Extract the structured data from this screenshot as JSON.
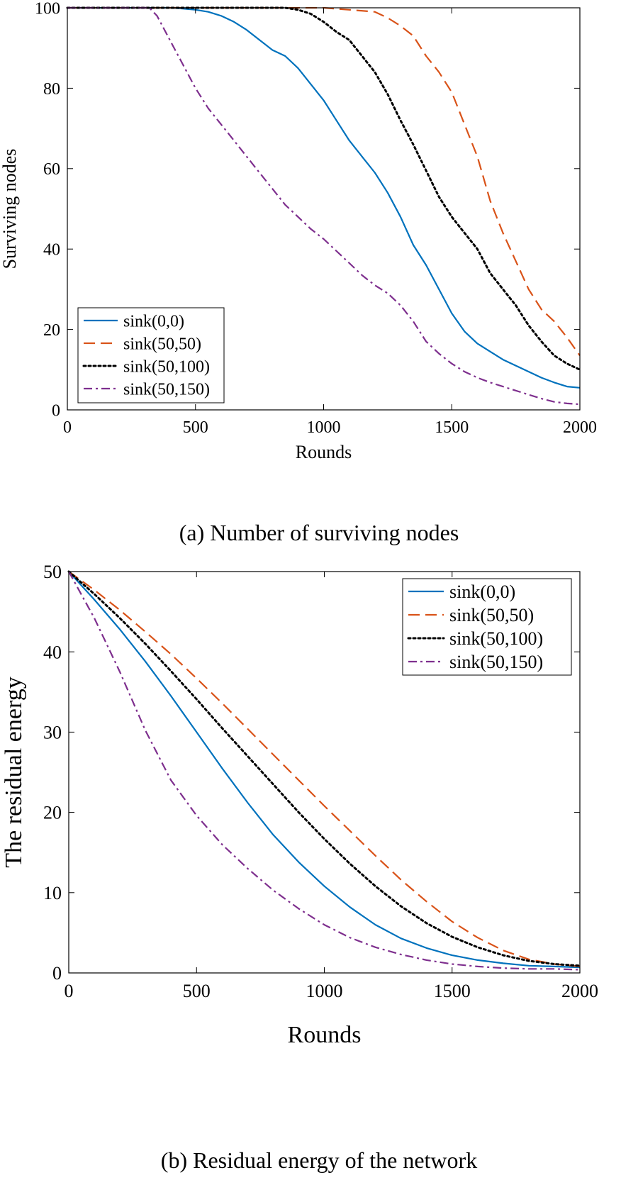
{
  "chart_data": [
    {
      "type": "line",
      "caption": "(a) Number of surviving nodes",
      "xlabel": "Rounds",
      "ylabel": "Surviving nodes",
      "xlim": [
        0,
        2000
      ],
      "ylim": [
        0,
        100
      ],
      "xticks": [
        0,
        500,
        1000,
        1500,
        2000
      ],
      "yticks": [
        0,
        20,
        40,
        60,
        80,
        100
      ],
      "xtick_labels": [
        "0",
        "500",
        "1000",
        "1500",
        "2000"
      ],
      "ytick_labels": [
        "0",
        "20",
        "40",
        "60",
        "80",
        "100"
      ],
      "grid": false,
      "legend_position": "bottom-left",
      "series": [
        {
          "name": "sink(0,0)",
          "color": "#0072BD",
          "style": "solid",
          "x": [
            0,
            400,
            450,
            500,
            550,
            600,
            650,
            700,
            750,
            800,
            850,
            900,
            950,
            1000,
            1050,
            1100,
            1150,
            1200,
            1250,
            1300,
            1350,
            1400,
            1450,
            1500,
            1550,
            1600,
            1650,
            1700,
            1750,
            1800,
            1850,
            1900,
            1950,
            2000
          ],
          "y": [
            100,
            100,
            99.8,
            99.5,
            99,
            98,
            96.5,
            94.5,
            92,
            89.5,
            88,
            85,
            81,
            77,
            72,
            67,
            63,
            59,
            54,
            48,
            41,
            36,
            30,
            24,
            19.5,
            16.5,
            14.5,
            12.5,
            11,
            9.5,
            8,
            6.8,
            5.8,
            5.5
          ]
        },
        {
          "name": "sink(50,50)",
          "color": "#D95319",
          "style": "dashed",
          "x": [
            0,
            900,
            1000,
            1100,
            1200,
            1250,
            1300,
            1350,
            1400,
            1450,
            1500,
            1550,
            1600,
            1650,
            1700,
            1750,
            1800,
            1850,
            1900,
            1950,
            2000
          ],
          "y": [
            100,
            100,
            100,
            99.5,
            99,
            97.5,
            95.5,
            93,
            88,
            84,
            79,
            71,
            63,
            52,
            44,
            37,
            30,
            25,
            22,
            18,
            13.5
          ]
        },
        {
          "name": "sink(50,100)",
          "color": "#000000",
          "style": "dotted",
          "x": [
            0,
            850,
            900,
            950,
            1000,
            1050,
            1100,
            1150,
            1200,
            1250,
            1300,
            1350,
            1400,
            1450,
            1500,
            1550,
            1600,
            1650,
            1700,
            1750,
            1800,
            1850,
            1900,
            1950,
            2000
          ],
          "y": [
            100,
            100,
            99.5,
            98.5,
            96.5,
            94,
            92,
            88,
            84,
            78.5,
            72,
            66,
            59.5,
            53,
            48,
            44,
            40,
            34,
            30,
            26,
            21,
            17,
            13.5,
            11.5,
            10
          ]
        },
        {
          "name": "sink(50,150)",
          "color": "#7E2F8E",
          "style": "dashdot",
          "x": [
            0,
            320,
            350,
            400,
            450,
            500,
            550,
            600,
            650,
            700,
            750,
            800,
            850,
            900,
            950,
            1000,
            1050,
            1100,
            1150,
            1200,
            1250,
            1300,
            1350,
            1400,
            1450,
            1500,
            1550,
            1600,
            1650,
            1700,
            1750,
            1800,
            1850,
            1900,
            1950,
            2000
          ],
          "y": [
            100,
            100,
            98,
            92,
            86,
            80,
            75,
            71,
            67,
            63,
            59,
            55,
            51,
            48,
            45,
            42.5,
            39.5,
            36.5,
            33.5,
            31,
            29,
            26,
            22,
            17,
            14,
            11.5,
            9.5,
            8,
            6.8,
            5.8,
            4.8,
            3.8,
            2.8,
            2,
            1.6,
            1.4
          ]
        }
      ]
    },
    {
      "type": "line",
      "caption": "(b) Residual energy of the network",
      "xlabel": "Rounds",
      "ylabel": "The residual energy",
      "xlim": [
        0,
        2000
      ],
      "ylim": [
        0,
        50
      ],
      "xticks": [
        0,
        500,
        1000,
        1500,
        2000
      ],
      "yticks": [
        0,
        10,
        20,
        30,
        40,
        50
      ],
      "xtick_labels": [
        "0",
        "500",
        "1000",
        "1500",
        "2000"
      ],
      "ytick_labels": [
        "0",
        "10",
        "20",
        "30",
        "40",
        "50"
      ],
      "grid": false,
      "legend_position": "top-right",
      "series": [
        {
          "name": "sink(0,0)",
          "color": "#0072BD",
          "style": "solid",
          "x": [
            0,
            100,
            200,
            300,
            400,
            500,
            600,
            700,
            800,
            900,
            1000,
            1100,
            1200,
            1300,
            1400,
            1500,
            1600,
            1700,
            1800,
            1900,
            2000
          ],
          "y": [
            50,
            46.5,
            42.8,
            38.8,
            34.5,
            30,
            25.5,
            21.2,
            17.2,
            13.8,
            10.8,
            8.2,
            6.0,
            4.3,
            3.1,
            2.2,
            1.6,
            1.2,
            0.9,
            0.8,
            0.7
          ]
        },
        {
          "name": "sink(50,50)",
          "color": "#D95319",
          "style": "dashed",
          "x": [
            0,
            100,
            200,
            300,
            400,
            500,
            600,
            700,
            800,
            900,
            1000,
            1100,
            1200,
            1300,
            1400,
            1500,
            1600,
            1700,
            1800,
            1900,
            2000
          ],
          "y": [
            50,
            47.7,
            45.2,
            42.5,
            39.7,
            36.7,
            33.6,
            30.4,
            27.2,
            24.0,
            20.8,
            17.7,
            14.6,
            11.6,
            8.9,
            6.4,
            4.4,
            2.8,
            1.7,
            1.1,
            0.8
          ]
        },
        {
          "name": "sink(50,100)",
          "color": "#000000",
          "style": "dotted",
          "x": [
            0,
            100,
            200,
            300,
            400,
            500,
            600,
            700,
            800,
            900,
            1000,
            1100,
            1200,
            1300,
            1400,
            1500,
            1600,
            1700,
            1800,
            1900,
            2000
          ],
          "y": [
            50,
            47.2,
            44.2,
            41.0,
            37.6,
            34.1,
            30.5,
            27.0,
            23.5,
            20.0,
            16.7,
            13.6,
            10.8,
            8.3,
            6.2,
            4.5,
            3.2,
            2.2,
            1.5,
            1.1,
            0.9
          ]
        },
        {
          "name": "sink(50,150)",
          "color": "#7E2F8E",
          "style": "dashdot",
          "x": [
            0,
            100,
            200,
            300,
            400,
            500,
            600,
            700,
            800,
            900,
            1000,
            1100,
            1200,
            1300,
            1400,
            1500,
            1600,
            1700,
            1800,
            1900,
            2000
          ],
          "y": [
            50,
            44.2,
            37.5,
            30.2,
            24.0,
            19.6,
            16.0,
            13.0,
            10.3,
            8.0,
            6.0,
            4.4,
            3.2,
            2.3,
            1.6,
            1.1,
            0.8,
            0.6,
            0.5,
            0.5,
            0.4
          ]
        }
      ]
    }
  ]
}
